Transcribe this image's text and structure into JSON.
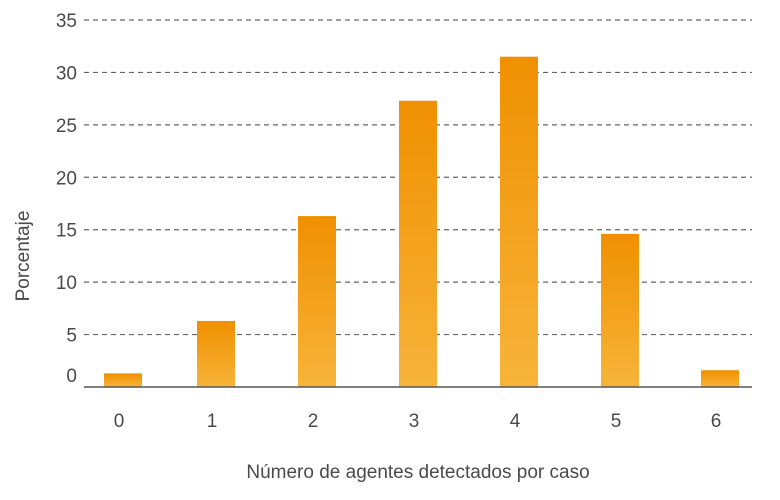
{
  "chart_data": {
    "type": "bar",
    "categories": [
      "0",
      "1",
      "2",
      "3",
      "4",
      "5",
      "6"
    ],
    "values": [
      1.3,
      6.3,
      16.3,
      27.3,
      31.5,
      14.6,
      1.6
    ],
    "xlabel": "Número de agentes detectados por caso",
    "ylabel": "Porcentaje",
    "ylim": [
      0,
      35
    ],
    "yticks": [
      "0",
      "5",
      "10",
      "15",
      "20",
      "25",
      "30",
      "35"
    ],
    "grid": true,
    "colors": {
      "bar_top": "#f09000",
      "bar_bottom": "#f7b43a"
    }
  }
}
